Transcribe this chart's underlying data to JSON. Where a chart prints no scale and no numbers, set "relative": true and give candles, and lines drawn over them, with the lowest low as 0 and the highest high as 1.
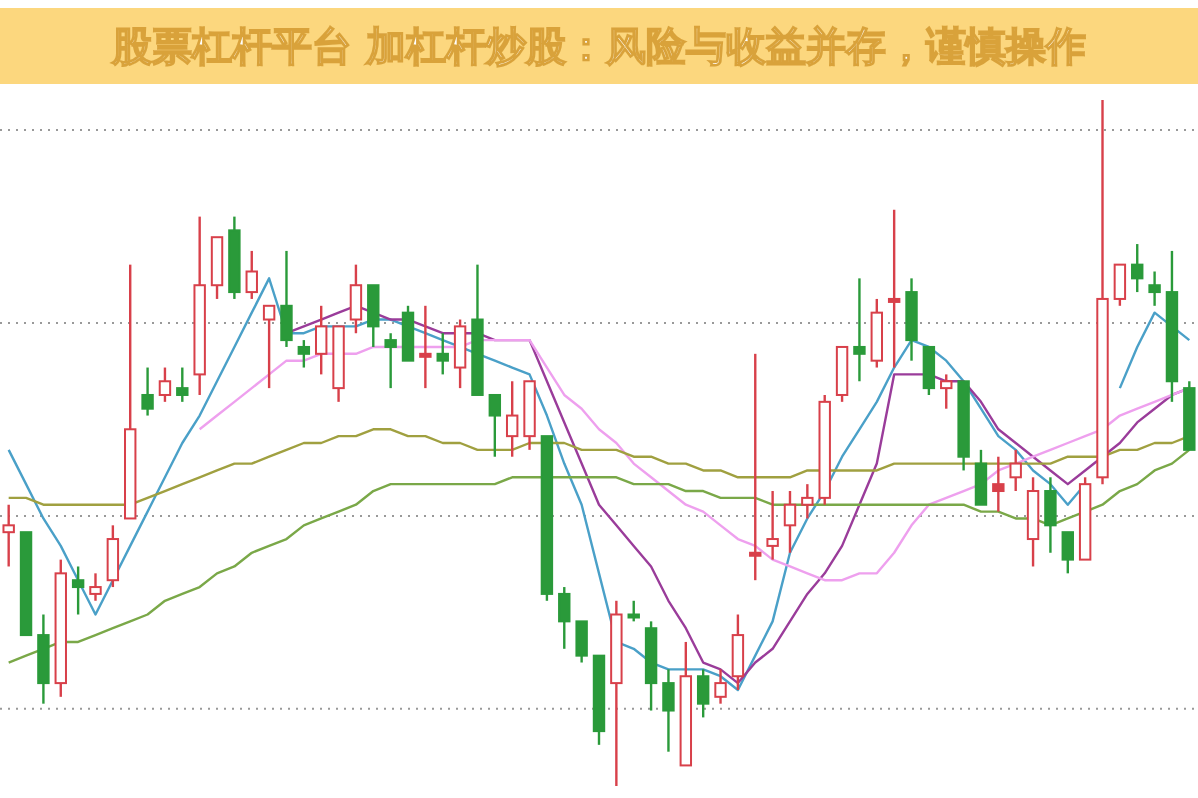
{
  "chart_data": {
    "type": "candlestick",
    "title": "股票杠杆平台 加杠杆炒股：风险与收益并存，谨慎操作",
    "relative": true,
    "grid": true,
    "categories": [
      null,
      null,
      null,
      null,
      null,
      null,
      null,
      null,
      null,
      null,
      null,
      null,
      null,
      null,
      null,
      null,
      null,
      null,
      null,
      null,
      null,
      null,
      null,
      null,
      null,
      null,
      null,
      null,
      null,
      null,
      null,
      null,
      null,
      null,
      null,
      null,
      null,
      null,
      null,
      null,
      null,
      null,
      null,
      null,
      null,
      null,
      null,
      null,
      null,
      null,
      null,
      null,
      null,
      null,
      null,
      null,
      null,
      null,
      null,
      null,
      null,
      null,
      null,
      null,
      null,
      null,
      null,
      null,
      null
    ],
    "ohlc": [
      [
        0.37,
        0.41,
        0.32,
        0.38
      ],
      [
        0.37,
        0.37,
        0.22,
        0.22
      ],
      [
        0.22,
        0.25,
        0.12,
        0.15
      ],
      [
        0.15,
        0.33,
        0.13,
        0.31
      ],
      [
        0.3,
        0.32,
        0.25,
        0.29
      ],
      [
        0.28,
        0.31,
        0.27,
        0.29
      ],
      [
        0.3,
        0.38,
        0.29,
        0.36
      ],
      [
        0.39,
        0.76,
        0.39,
        0.52
      ],
      [
        0.57,
        0.61,
        0.54,
        0.55
      ],
      [
        0.57,
        0.61,
        0.56,
        0.59
      ],
      [
        0.58,
        0.61,
        0.56,
        0.57
      ],
      [
        0.6,
        0.83,
        0.57,
        0.73
      ],
      [
        0.73,
        0.8,
        0.71,
        0.8
      ],
      [
        0.81,
        0.83,
        0.71,
        0.72
      ],
      [
        0.72,
        0.78,
        0.71,
        0.75
      ],
      [
        0.68,
        0.7,
        0.58,
        0.7
      ],
      [
        0.7,
        0.78,
        0.64,
        0.65
      ],
      [
        0.64,
        0.65,
        0.61,
        0.63
      ],
      [
        0.63,
        0.7,
        0.6,
        0.67
      ],
      [
        0.58,
        0.67,
        0.56,
        0.67
      ],
      [
        0.68,
        0.76,
        0.66,
        0.73
      ],
      [
        0.73,
        0.73,
        0.64,
        0.67
      ],
      [
        0.65,
        0.66,
        0.58,
        0.64
      ],
      [
        0.69,
        0.7,
        0.62,
        0.62
      ],
      [
        0.63,
        0.7,
        0.58,
        0.63
      ],
      [
        0.63,
        0.66,
        0.6,
        0.62
      ],
      [
        0.61,
        0.68,
        0.58,
        0.67
      ],
      [
        0.68,
        0.76,
        0.57,
        0.57
      ],
      [
        0.57,
        0.57,
        0.48,
        0.54
      ],
      [
        0.51,
        0.59,
        0.48,
        0.54
      ],
      [
        0.51,
        0.59,
        0.49,
        0.59
      ],
      [
        0.51,
        0.51,
        0.27,
        0.28
      ],
      [
        0.28,
        0.29,
        0.2,
        0.24
      ],
      [
        0.24,
        0.24,
        0.18,
        0.19
      ],
      [
        0.19,
        0.19,
        0.06,
        0.08
      ],
      [
        0.15,
        0.27,
        0,
        0.25
      ],
      [
        0.25,
        0.27,
        0.24,
        0.25
      ],
      [
        0.23,
        0.24,
        0.11,
        0.15
      ],
      [
        0.15,
        0.17,
        0.05,
        0.11
      ],
      [
        0.03,
        0.21,
        0.03,
        0.16
      ],
      [
        0.16,
        0.17,
        0.1,
        0.12
      ],
      [
        0.13,
        0.17,
        0.12,
        0.15
      ],
      [
        0.16,
        0.25,
        0.14,
        0.22
      ],
      [
        0.34,
        0.63,
        0.3,
        0.34
      ],
      [
        0.35,
        0.43,
        0.33,
        0.36
      ],
      [
        0.38,
        0.43,
        0.34,
        0.41
      ],
      [
        0.41,
        0.44,
        0.39,
        0.42
      ],
      [
        0.42,
        0.57,
        0.41,
        0.56
      ],
      [
        0.57,
        0.64,
        0.56,
        0.64
      ],
      [
        0.64,
        0.74,
        0.59,
        0.63
      ],
      [
        0.62,
        0.71,
        0.61,
        0.69
      ],
      [
        0.71,
        0.84,
        0.61,
        0.71
      ],
      [
        0.72,
        0.74,
        0.62,
        0.65
      ],
      [
        0.64,
        0.64,
        0.57,
        0.58
      ],
      [
        0.58,
        0.6,
        0.55,
        0.59
      ],
      [
        0.59,
        0.59,
        0.46,
        0.48
      ],
      [
        0.47,
        0.49,
        0.41,
        0.41
      ],
      [
        0.44,
        0.48,
        0.4,
        0.43
      ],
      [
        0.45,
        0.49,
        0.43,
        0.47
      ],
      [
        0.36,
        0.45,
        0.32,
        0.43
      ],
      [
        0.43,
        0.45,
        0.34,
        0.38
      ],
      [
        0.37,
        0.37,
        0.31,
        0.33
      ],
      [
        0.33,
        0.45,
        0.33,
        0.44
      ],
      [
        0.45,
        1,
        0.44,
        0.71
      ],
      [
        0.71,
        0.76,
        0.7,
        0.76
      ],
      [
        0.76,
        0.79,
        0.72,
        0.74
      ],
      [
        0.73,
        0.75,
        0.7,
        0.72
      ],
      [
        0.72,
        0.78,
        0.56,
        0.59
      ],
      [
        0.58,
        0.59,
        0.49,
        0.49
      ]
    ],
    "colors": [
      "#d8404a",
      "#2a9a3a",
      "#2a9a3a",
      "#d8404a",
      "#2a9a3a",
      "#d8404a",
      "#d8404a",
      "#d8404a",
      "#2a9a3a",
      "#d8404a",
      "#2a9a3a",
      "#d8404a",
      "#d8404a",
      "#2a9a3a",
      "#d8404a",
      "#d8404a",
      "#2a9a3a",
      "#2a9a3a",
      "#d8404a",
      "#d8404a",
      "#d8404a",
      "#2a9a3a",
      "#2a9a3a",
      "#2a9a3a",
      "#d8404a",
      "#2a9a3a",
      "#d8404a",
      "#2a9a3a",
      "#2a9a3a",
      "#d8404a",
      "#d8404a",
      "#2a9a3a",
      "#2a9a3a",
      "#2a9a3a",
      "#2a9a3a",
      "#d8404a",
      "#2a9a3a",
      "#2a9a3a",
      "#2a9a3a",
      "#d8404a",
      "#2a9a3a",
      "#d8404a",
      "#d8404a",
      "#d8404a",
      "#d8404a",
      "#d8404a",
      "#d8404a",
      "#d8404a",
      "#d8404a",
      "#2a9a3a",
      "#d8404a",
      "#d8404a",
      "#2a9a3a",
      "#2a9a3a",
      "#d8404a",
      "#2a9a3a",
      "#2a9a3a",
      "#d8404a",
      "#d8404a",
      "#d8404a",
      "#2a9a3a",
      "#2a9a3a",
      "#d8404a",
      "#d8404a",
      "#d8404a",
      "#2a9a3a",
      "#2a9a3a",
      "#2a9a3a",
      "#2a9a3a"
    ],
    "series": [
      {
        "type": "line",
        "color": "#4aa0c8",
        "values": [
          0.49,
          0.44,
          0.39,
          0.35,
          0.3,
          0.25,
          0.3,
          0.35,
          0.4,
          0.45,
          0.5,
          0.54,
          0.59,
          0.64,
          0.69,
          0.74,
          0.66,
          0.66,
          0.67,
          0.67,
          0.67,
          0.68,
          0.68,
          0.67,
          0.66,
          0.65,
          0.64,
          0.63,
          0.62,
          0.61,
          0.6,
          0.54,
          0.47,
          0.41,
          0.31,
          0.21,
          0.2,
          0.18,
          0.17,
          0.17,
          0.17,
          0.16,
          0.14,
          0.19,
          0.24,
          0.34,
          0.39,
          0.43,
          0.48,
          0.52,
          0.56,
          0.61,
          0.65,
          0.64,
          0.62,
          0.59,
          0.55,
          0.51,
          0.49,
          0.46,
          0.44,
          0.41,
          0.44,
          null,
          0.58,
          0.64,
          0.69,
          0.67,
          0.65
        ]
      },
      {
        "type": "line",
        "color": "#9a3c9a",
        "values": [
          null,
          null,
          null,
          null,
          null,
          null,
          null,
          null,
          null,
          null,
          null,
          null,
          null,
          null,
          null,
          null,
          0.66,
          0.67,
          0.68,
          0.69,
          0.7,
          0.69,
          0.68,
          0.68,
          0.67,
          0.66,
          0.66,
          0.66,
          0.65,
          0.65,
          0.65,
          0.59,
          0.53,
          0.47,
          0.41,
          0.38,
          0.35,
          0.32,
          0.27,
          0.23,
          0.18,
          0.17,
          0.15,
          0.18,
          0.2,
          0.24,
          0.28,
          0.31,
          0.35,
          0.41,
          0.47,
          0.6,
          0.6,
          0.6,
          0.59,
          0.59,
          0.56,
          0.52,
          0.5,
          0.48,
          0.46,
          0.44,
          0.46,
          0.48,
          0.5,
          0.53,
          0.55,
          0.57,
          0.58
        ]
      },
      {
        "type": "line",
        "color": "#eea0ee",
        "values": [
          null,
          null,
          null,
          null,
          null,
          null,
          null,
          null,
          null,
          null,
          null,
          0.52,
          0.54,
          0.56,
          0.58,
          0.6,
          0.62,
          0.62,
          0.63,
          0.63,
          0.63,
          0.64,
          0.64,
          0.64,
          0.64,
          0.64,
          0.64,
          0.65,
          0.65,
          0.65,
          0.65,
          0.61,
          0.57,
          0.55,
          0.52,
          0.5,
          0.47,
          0.45,
          0.43,
          0.41,
          0.4,
          0.38,
          0.36,
          0.35,
          0.33,
          0.32,
          0.31,
          0.3,
          0.3,
          0.31,
          0.31,
          0.34,
          0.38,
          0.41,
          0.42,
          0.43,
          0.44,
          0.46,
          0.47,
          0.48,
          0.49,
          0.5,
          0.51,
          0.52,
          0.54,
          0.55,
          0.56,
          0.57,
          0.58
        ]
      },
      {
        "type": "line",
        "color": "#a0a040",
        "values": [
          0.42,
          0.42,
          0.41,
          0.41,
          0.41,
          0.41,
          0.41,
          0.41,
          0.42,
          0.43,
          0.44,
          0.45,
          0.46,
          0.47,
          0.47,
          0.48,
          0.49,
          0.5,
          0.5,
          0.51,
          0.51,
          0.52,
          0.52,
          0.51,
          0.51,
          0.5,
          0.5,
          0.49,
          0.49,
          0.49,
          0.5,
          0.5,
          0.5,
          0.49,
          0.49,
          0.49,
          0.48,
          0.48,
          0.47,
          0.47,
          0.46,
          0.46,
          0.45,
          0.45,
          0.45,
          0.45,
          0.46,
          0.46,
          0.46,
          0.46,
          0.46,
          0.47,
          0.47,
          0.47,
          0.47,
          0.47,
          0.47,
          0.47,
          0.47,
          0.47,
          0.47,
          0.48,
          0.48,
          0.48,
          0.49,
          0.49,
          0.5,
          0.5,
          0.51
        ]
      },
      {
        "type": "line",
        "color": "#7aa848",
        "values": [
          0.18,
          0.19,
          0.2,
          0.21,
          0.21,
          0.22,
          0.23,
          0.24,
          0.25,
          0.27,
          0.28,
          0.29,
          0.31,
          0.32,
          0.34,
          0.35,
          0.36,
          0.38,
          0.39,
          0.4,
          0.41,
          0.43,
          0.44,
          0.44,
          0.44,
          0.44,
          0.44,
          0.44,
          0.44,
          0.45,
          0.45,
          0.45,
          0.45,
          0.45,
          0.45,
          0.45,
          0.44,
          0.44,
          0.44,
          0.43,
          0.43,
          0.42,
          0.42,
          0.42,
          0.41,
          0.41,
          0.41,
          0.41,
          0.41,
          0.41,
          0.41,
          0.41,
          0.41,
          0.41,
          0.41,
          0.41,
          0.4,
          0.4,
          0.39,
          0.39,
          0.38,
          0.39,
          0.4,
          0.41,
          0.43,
          0.44,
          0.46,
          0.47,
          0.49
        ]
      }
    ]
  }
}
